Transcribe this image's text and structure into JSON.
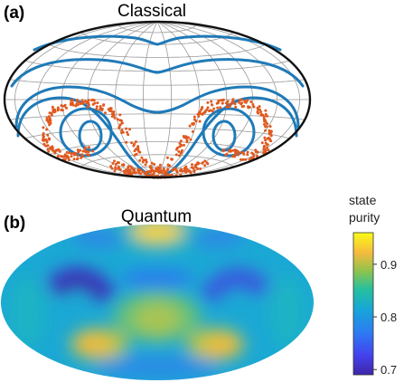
{
  "chart_data": [
    {
      "type": "scatter",
      "panel_label": "(a)",
      "title": "Classical",
      "projection": "hammer",
      "grid": true,
      "series_colors": {
        "orbits": "#1f7ab8",
        "chaotic_points": "#e0591f"
      }
    },
    {
      "type": "heatmap",
      "panel_label": "(b)",
      "title": "Quantum",
      "projection": "hammer",
      "colorbar": {
        "label_lines": [
          "state",
          "purity"
        ],
        "ticks": [
          "0.9",
          "0.8",
          "0.7"
        ],
        "range": [
          0.69,
          0.96
        ],
        "colormap": "parula"
      },
      "hot_spots": [
        {
          "lon": -35,
          "lat": -42,
          "value": 0.91
        },
        {
          "lon": 35,
          "lat": -42,
          "value": 0.91
        },
        {
          "lon": 0,
          "lat": 82,
          "value": 0.95
        },
        {
          "lon": 0,
          "lat": 0,
          "value": 0.86
        }
      ],
      "cold_spots": [
        {
          "lon": -55,
          "lat": -20,
          "value": 0.71
        },
        {
          "lon": 55,
          "lat": -22,
          "value": 0.73
        }
      ]
    }
  ]
}
